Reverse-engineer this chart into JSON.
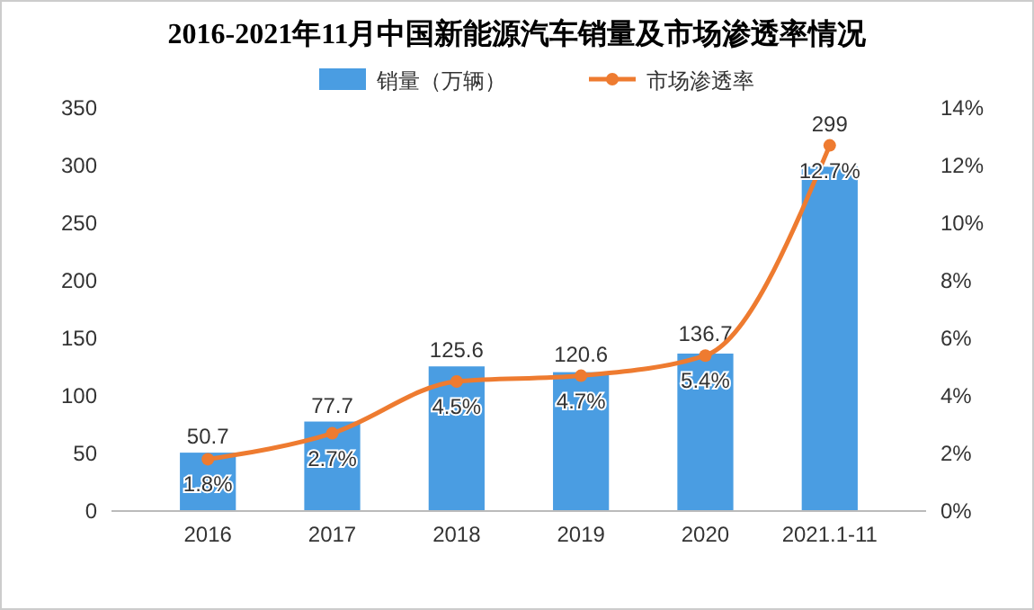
{
  "chart_data": {
    "type": "bar",
    "title": "2016-2021年11月中国新能源汽车销量及市场渗透率情况",
    "categories": [
      "2016",
      "2017",
      "2018",
      "2019",
      "2020",
      "2021.1-11"
    ],
    "series": [
      {
        "name": "销量（万辆）",
        "color": "#4a9de2",
        "values": [
          50.7,
          77.7,
          125.6,
          120.6,
          136.7,
          299
        ],
        "value_labels": [
          "50.7",
          "77.7",
          "125.6",
          "120.6",
          "136.7",
          "299"
        ]
      },
      {
        "name": "市场渗透率",
        "type": "line",
        "axis": "y2",
        "color": "#ee7b30",
        "marker": "circle",
        "values": [
          1.8,
          2.7,
          4.5,
          4.7,
          5.4,
          12.7
        ],
        "value_labels": [
          "1.8%",
          "2.7%",
          "4.5%",
          "4.7%",
          "5.4%",
          "12.7%"
        ]
      }
    ],
    "ylim": [
      0,
      350
    ],
    "yticks": [
      0,
      50,
      100,
      150,
      200,
      250,
      300,
      350
    ],
    "y2lim": [
      0,
      14
    ],
    "y2ticks": [
      {
        "value": 0,
        "label": "0%"
      },
      {
        "value": 2,
        "label": "2%"
      },
      {
        "value": 4,
        "label": "4%"
      },
      {
        "value": 6,
        "label": "6%"
      },
      {
        "value": 8,
        "label": "8%"
      },
      {
        "value": 10,
        "label": "10%"
      },
      {
        "value": 12,
        "label": "12%"
      },
      {
        "value": 14,
        "label": "14%"
      }
    ],
    "legend": "top",
    "grid": false
  }
}
